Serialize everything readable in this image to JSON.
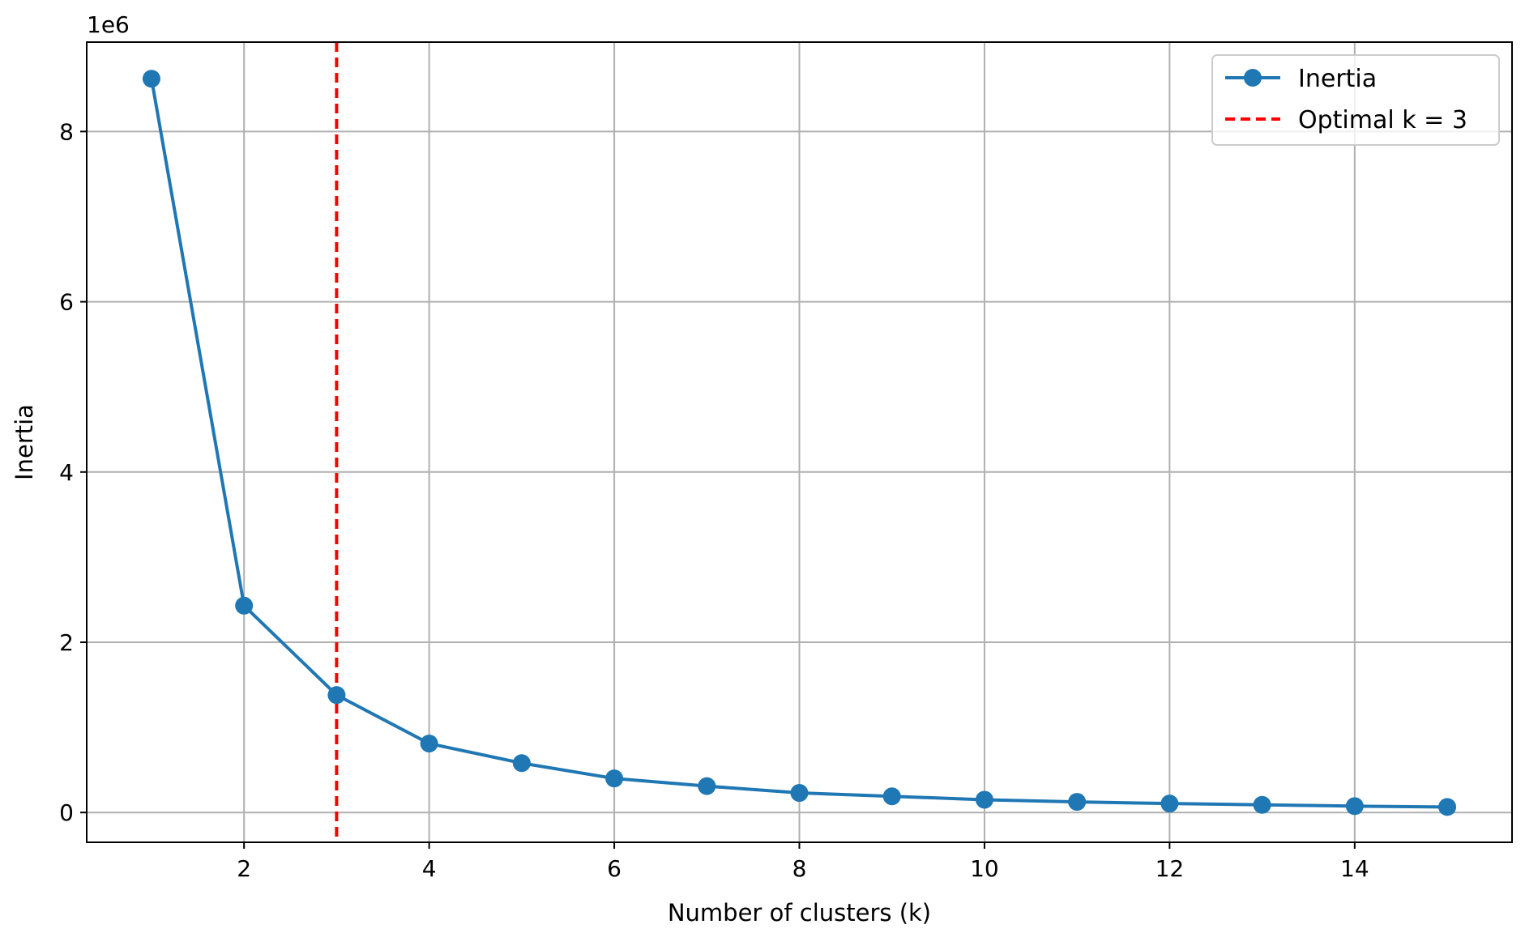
{
  "chart_data": {
    "type": "line",
    "title": "",
    "xlabel": "Number of clusters (k)",
    "ylabel": "Inertia",
    "y_offset_label": "1e6",
    "xlim": [
      0.3,
      15.7
    ],
    "ylim": [
      -350000,
      9050000
    ],
    "x_ticks": [
      2,
      4,
      6,
      8,
      10,
      12,
      14
    ],
    "x_tick_labels": [
      "2",
      "4",
      "6",
      "8",
      "10",
      "12",
      "14"
    ],
    "y_ticks": [
      0,
      2000000,
      4000000,
      6000000,
      8000000
    ],
    "y_tick_labels": [
      "0",
      "2",
      "4",
      "6",
      "8"
    ],
    "grid": true,
    "legend_position": "top-right",
    "series": [
      {
        "name": "Inertia",
        "color": "#1f77b4",
        "marker": "circle",
        "x": [
          1,
          2,
          3,
          4,
          5,
          6,
          7,
          8,
          9,
          10,
          11,
          12,
          13,
          14,
          15
        ],
        "y": [
          8620000,
          2430000,
          1380000,
          810000,
          580000,
          400000,
          310000,
          230000,
          190000,
          150000,
          125000,
          105000,
          90000,
          75000,
          65000
        ]
      }
    ],
    "reference_lines": [
      {
        "name": "Optimal k = 3",
        "orientation": "vertical",
        "x": 3,
        "color": "#ff0000",
        "style": "dashed"
      }
    ]
  }
}
